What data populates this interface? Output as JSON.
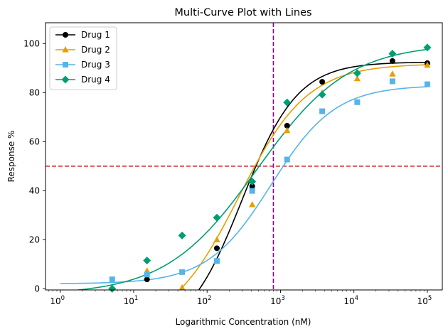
{
  "chart_data": {
    "type": "line",
    "title": "Multi-Curve Plot with Lines",
    "xlabel": "Logarithmic Concentration (nM)",
    "ylabel": "Response %",
    "xscale": "log",
    "xlim": [
      0.63,
      160000
    ],
    "ylim": [
      -0.5,
      108.5
    ],
    "x_ticks": [
      {
        "value": 1,
        "base": "10",
        "exp": "0"
      },
      {
        "value": 10,
        "base": "10",
        "exp": "1"
      },
      {
        "value": 100,
        "base": "10",
        "exp": "2"
      },
      {
        "value": 1000,
        "base": "10",
        "exp": "3"
      },
      {
        "value": 10000,
        "base": "10",
        "exp": "4"
      },
      {
        "value": 100000,
        "base": "10",
        "exp": "5"
      }
    ],
    "y_ticks": [
      0,
      20,
      40,
      60,
      80,
      100
    ],
    "grid": false,
    "legend_position": "top-left",
    "reference_lines": [
      {
        "orientation": "horizontal",
        "value": 50,
        "color": "#d62728",
        "style": "dashed"
      },
      {
        "orientation": "vertical",
        "value": 800,
        "color": "#8b008b",
        "style": "dashed"
      }
    ],
    "series": [
      {
        "name": "Drug 1",
        "color": "#000000",
        "marker": "circle",
        "x": [
          15.2,
          136,
          412,
          1230,
          3700,
          33500,
          100000
        ],
        "y": [
          3.8,
          16.5,
          41.8,
          66.5,
          84.4,
          92.9,
          92.0
        ],
        "fit": {
          "bottom": -20,
          "top": 92.5,
          "ec50": 300,
          "hill": 1.15
        }
      },
      {
        "name": "Drug 2",
        "color": "#e69f00",
        "marker": "triangle",
        "x": [
          15.2,
          45.7,
          136,
          412,
          1230,
          3700,
          11100,
          33500,
          100000
        ],
        "y": [
          7.3,
          0.4,
          20.0,
          34.3,
          64.5,
          79.9,
          85.7,
          87.6,
          91.2
        ],
        "fit": {
          "bottom": -17,
          "top": 91.8,
          "ec50": 270,
          "hill": 0.93
        }
      },
      {
        "name": "Drug 3",
        "color": "#56b4e9",
        "marker": "square",
        "x": [
          5.1,
          15.2,
          45.7,
          136,
          412,
          1230,
          3700,
          11100,
          33500,
          100000
        ],
        "y": [
          3.8,
          5.8,
          6.8,
          11.3,
          39.9,
          52.7,
          72.4,
          76.1,
          84.6,
          83.4
        ],
        "fit": {
          "bottom": 2.0,
          "top": 83.0,
          "ec50": 750,
          "hill": 1.0
        }
      },
      {
        "name": "Drug 4",
        "color": "#009e73",
        "marker": "diamond",
        "x": [
          5.1,
          15.2,
          45.7,
          136,
          412,
          1230,
          3700,
          11100,
          33500,
          100000
        ],
        "y": [
          0.0,
          11.5,
          21.7,
          29.0,
          43.7,
          76.0,
          79.2,
          87.9,
          95.9,
          98.4
        ],
        "fit": {
          "bottom": -2.5,
          "top": 100,
          "ec50": 480,
          "hill": 0.7
        }
      }
    ]
  }
}
